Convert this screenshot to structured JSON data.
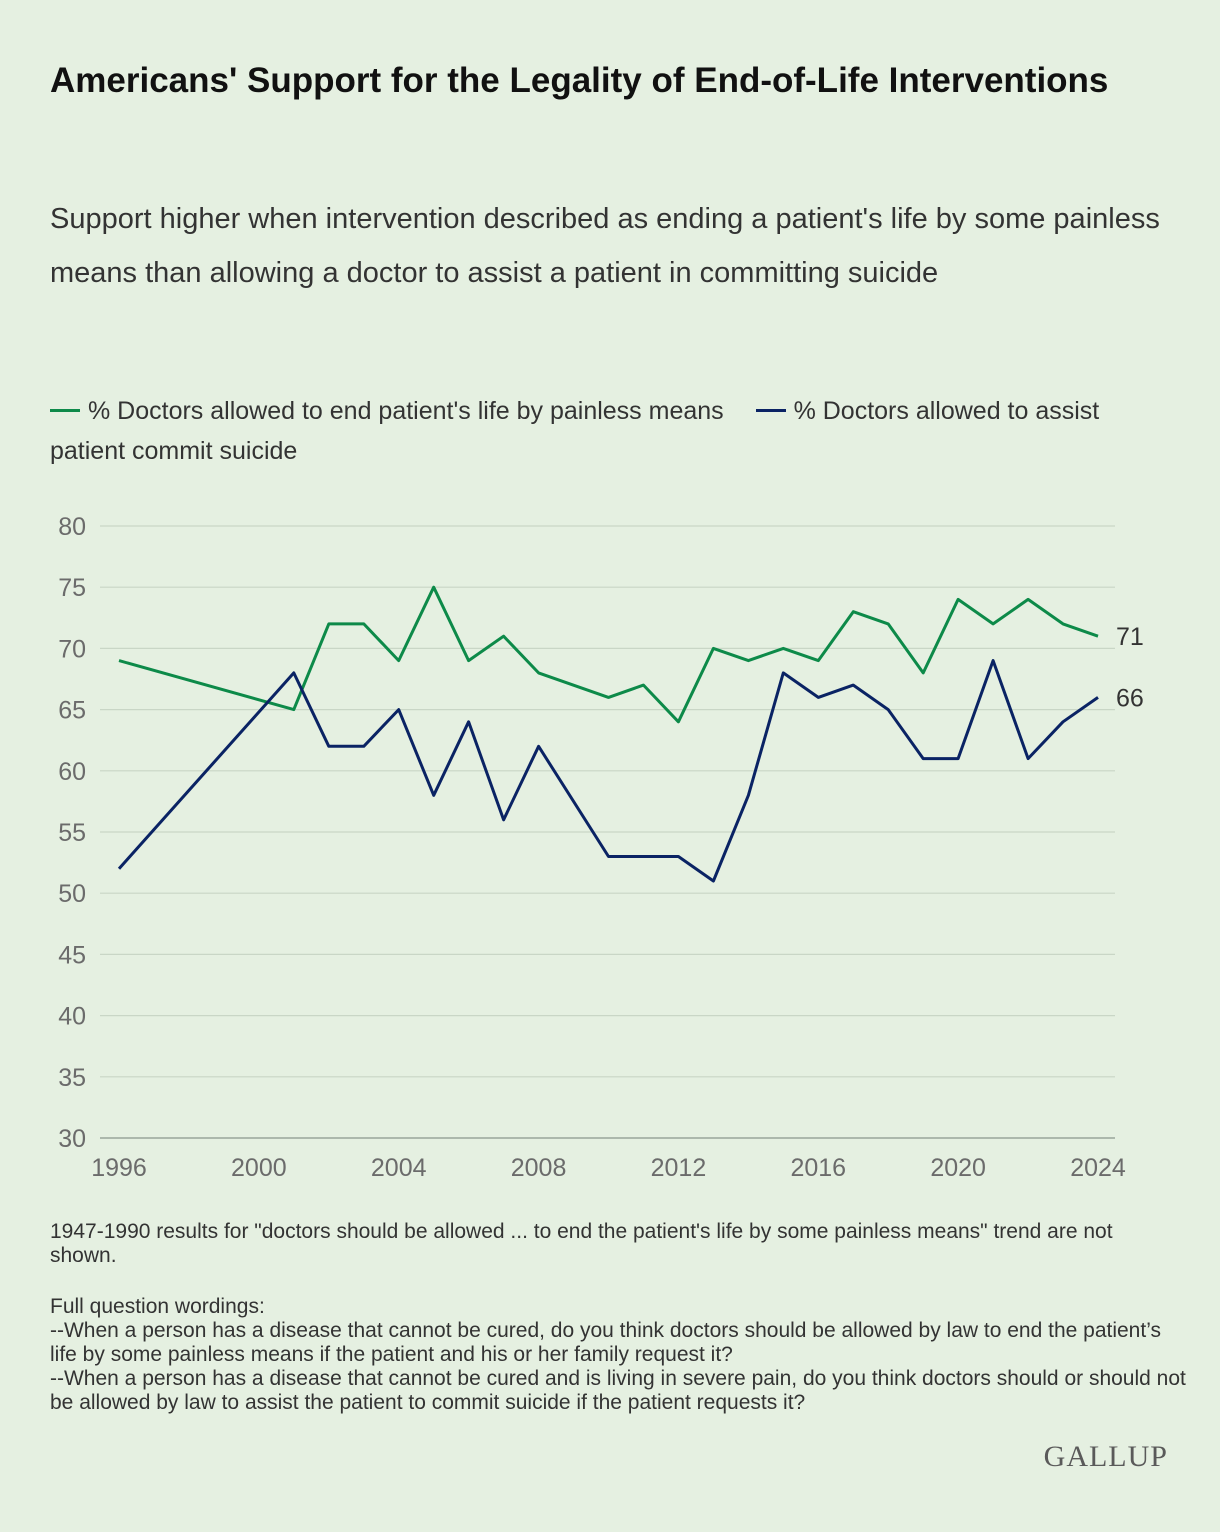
{
  "title": "Americans' Support for the Legality of End-of-Life Interventions",
  "subtitle": "Support higher when intervention described as ending a patient's life by some painless means than allowing a doctor to assist a patient in committing suicide",
  "legend": {
    "series_1": "% Doctors allowed to end patient's life by painless means",
    "series_2": "% Doctors allowed to assist patient commit suicide"
  },
  "note": "1947-1990 results for \"doctors should be allowed ... to end the patient's life by some painless means\" trend are not shown.",
  "wording": {
    "heading": "Full question wordings:",
    "q1": "--When a person has a disease that cannot be cured, do you think doctors should be allowed by law to end the patient’s life by some painless means if the patient and his or her family request it?",
    "q2": "--When a person has a disease that cannot be cured and is living in severe pain, do you think doctors should or should not be allowed by law to assist the patient to commit suicide if the patient requests it?"
  },
  "logo": "GALLUP",
  "colors": {
    "background": "#e5f0e1",
    "series_1": "#0d8a49",
    "series_2": "#0a2364",
    "grid": "#c9d6c6"
  },
  "chart_data": {
    "type": "line",
    "ylim": [
      30,
      80
    ],
    "xlim": [
      1996,
      2024
    ],
    "yticks": [
      30,
      35,
      40,
      45,
      50,
      55,
      60,
      65,
      70,
      75,
      80
    ],
    "xticks": [
      1996,
      2000,
      2004,
      2008,
      2012,
      2016,
      2020,
      2024
    ],
    "grid": "horizontal",
    "legend_position": "top",
    "series": [
      {
        "name": "% Doctors allowed to end patient's life by painless means",
        "color": "#0d8a49",
        "end_label": "71",
        "points": [
          [
            1996,
            69
          ],
          [
            2001,
            65
          ],
          [
            2002,
            72
          ],
          [
            2003,
            72
          ],
          [
            2004,
            69
          ],
          [
            2005,
            75
          ],
          [
            2006,
            69
          ],
          [
            2007,
            71
          ],
          [
            2008,
            68
          ],
          [
            2010,
            66
          ],
          [
            2011,
            67
          ],
          [
            2012,
            64
          ],
          [
            2013,
            70
          ],
          [
            2014,
            69
          ],
          [
            2015,
            70
          ],
          [
            2016,
            69
          ],
          [
            2017,
            73
          ],
          [
            2018,
            72
          ],
          [
            2019,
            68
          ],
          [
            2020,
            74
          ],
          [
            2021,
            72
          ],
          [
            2022,
            74
          ],
          [
            2023,
            72
          ],
          [
            2024,
            71
          ]
        ]
      },
      {
        "name": "% Doctors allowed to assist patient commit suicide",
        "color": "#0a2364",
        "end_label": "66",
        "points": [
          [
            1996,
            52
          ],
          [
            2001,
            68
          ],
          [
            2002,
            62
          ],
          [
            2003,
            62
          ],
          [
            2004,
            65
          ],
          [
            2005,
            58
          ],
          [
            2006,
            64
          ],
          [
            2007,
            56
          ],
          [
            2008,
            62
          ],
          [
            2010,
            53
          ],
          [
            2011,
            53
          ],
          [
            2012,
            53
          ],
          [
            2013,
            51
          ],
          [
            2014,
            58
          ],
          [
            2015,
            68
          ],
          [
            2016,
            66
          ],
          [
            2017,
            67
          ],
          [
            2018,
            65
          ],
          [
            2019,
            61
          ],
          [
            2020,
            61
          ],
          [
            2021,
            69
          ],
          [
            2022,
            61
          ],
          [
            2023,
            64
          ],
          [
            2024,
            66
          ]
        ]
      }
    ]
  }
}
